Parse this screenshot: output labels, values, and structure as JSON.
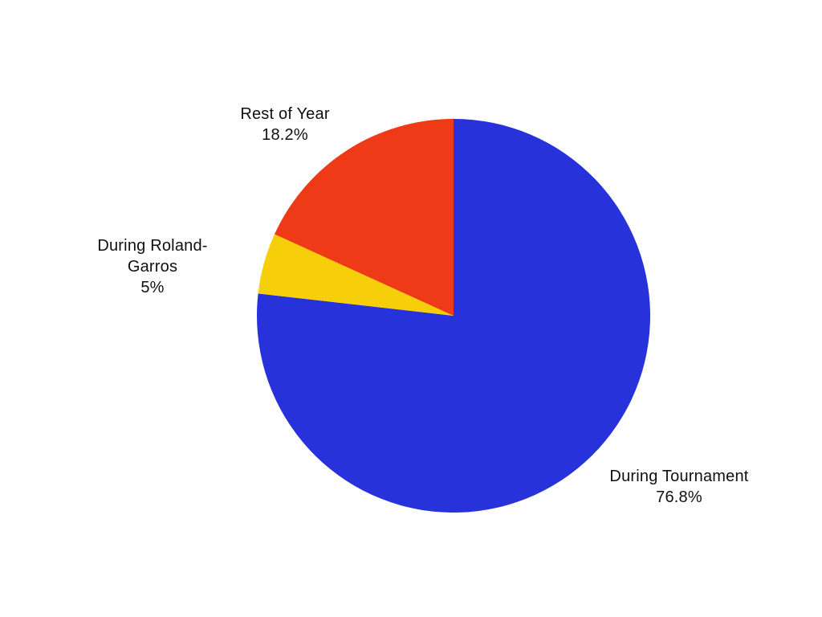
{
  "page": {
    "background": "#ffffff",
    "text_color": "#101010"
  },
  "chart_data": {
    "type": "pie",
    "title": "",
    "start_angle_deg": 0,
    "direction": "clockwise",
    "legend_position": "none",
    "total": 100,
    "slices": [
      {
        "label": "During Tournament",
        "value": 76.8,
        "percent_label": "76.8%",
        "color": "#2732DA"
      },
      {
        "label": "During Roland-Garros",
        "value": 5,
        "percent_label": "5%",
        "color": "#F6CF0A"
      },
      {
        "label": "Rest of Year",
        "value": 18.2,
        "percent_label": "18.2%",
        "color": "#EF3A18"
      }
    ]
  },
  "labels": {
    "rest_of_year": {
      "lines": [
        "Rest of Year",
        "18.2%"
      ]
    },
    "roland_garros": {
      "lines": [
        "During Roland-",
        "Garros",
        "5%"
      ]
    },
    "tournament": {
      "lines": [
        "During Tournament",
        "76.8%"
      ]
    }
  }
}
